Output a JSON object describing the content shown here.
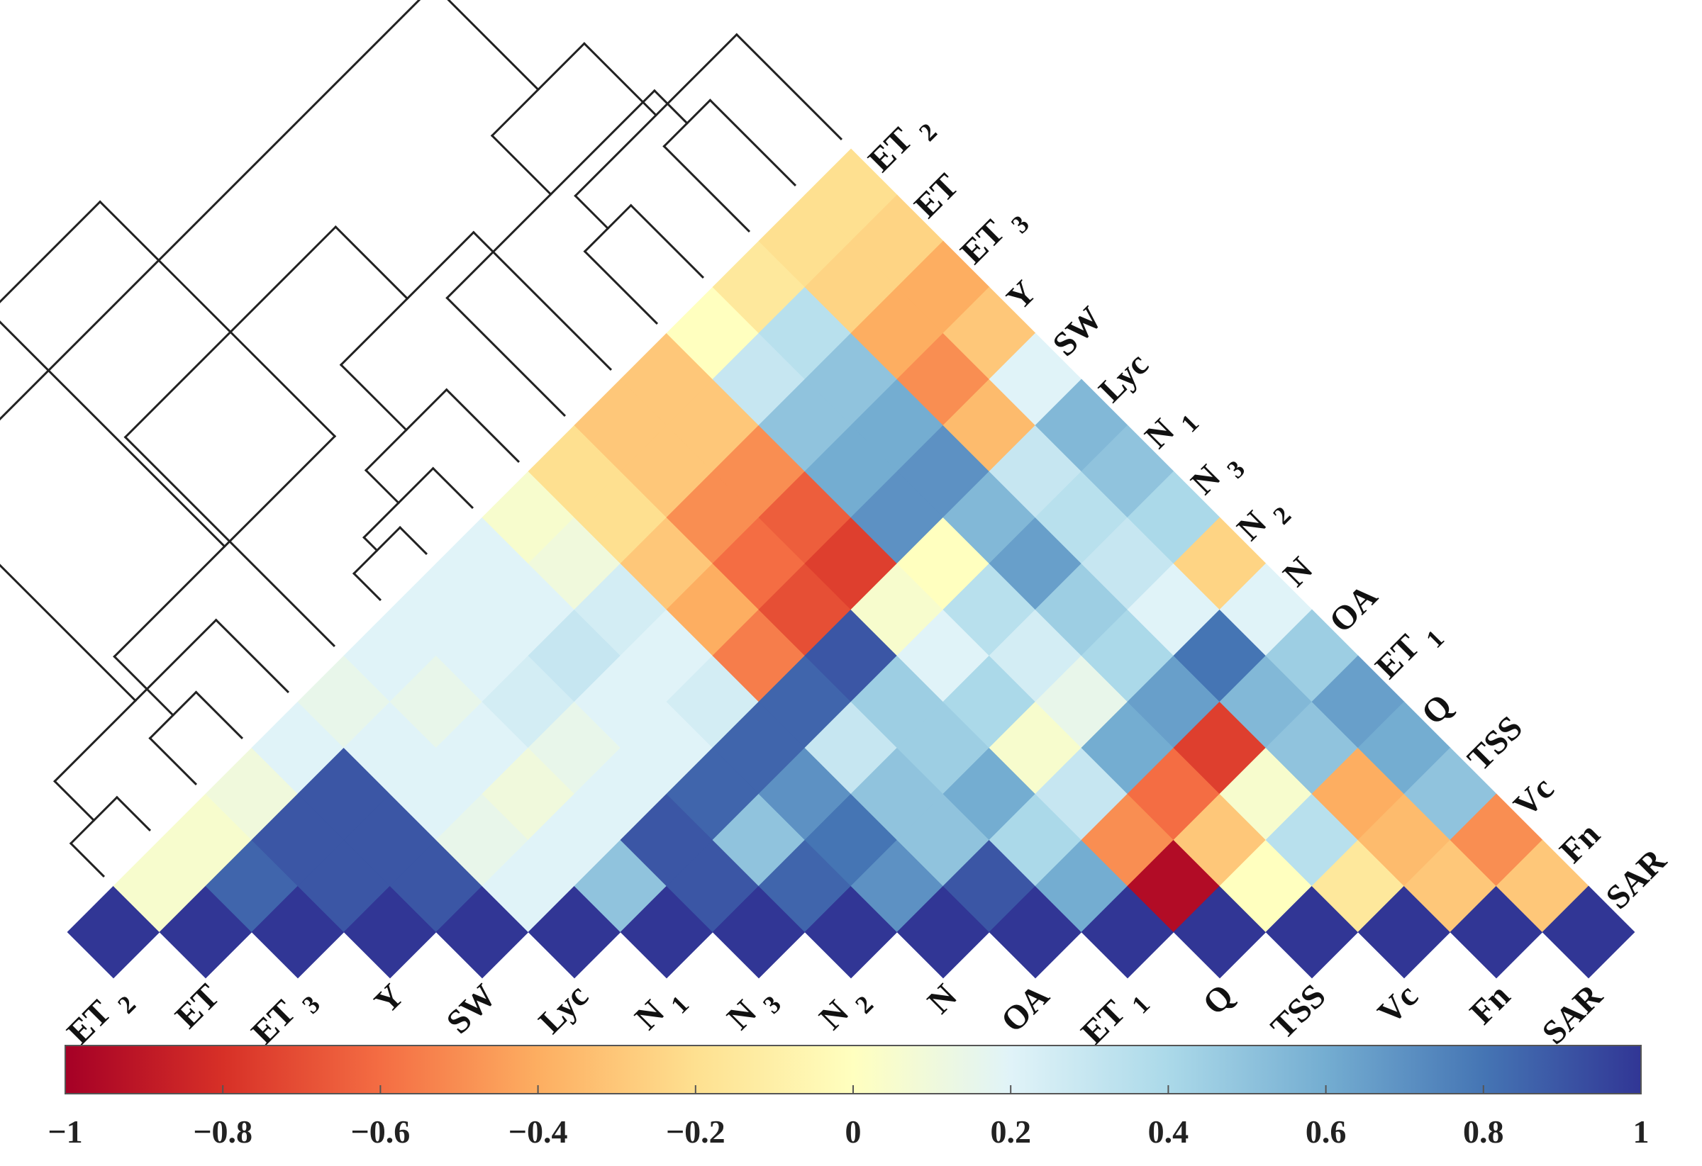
{
  "chart_data": {
    "type": "heatmap",
    "subtype": "lower-triangular correlation matrix with hierarchical clustering dendrogram",
    "title": "",
    "variables": [
      {
        "name": "ET",
        "sub": "2"
      },
      {
        "name": "ET",
        "sub": ""
      },
      {
        "name": "ET",
        "sub": "3"
      },
      {
        "name": "Y",
        "sub": ""
      },
      {
        "name": "SW",
        "sub": ""
      },
      {
        "name": "Lyc",
        "sub": ""
      },
      {
        "name": "N",
        "sub": "1"
      },
      {
        "name": "N",
        "sub": "3"
      },
      {
        "name": "N",
        "sub": "2"
      },
      {
        "name": "N",
        "sub": ""
      },
      {
        "name": "OA",
        "sub": ""
      },
      {
        "name": "ET",
        "sub": "1"
      },
      {
        "name": "Q",
        "sub": ""
      },
      {
        "name": "TSS",
        "sub": ""
      },
      {
        "name": "Vc",
        "sub": ""
      },
      {
        "name": "Fn",
        "sub": ""
      },
      {
        "name": "SAR",
        "sub": ""
      }
    ],
    "correlation_matrix_lower": [
      [
        1
      ],
      [
        0.05,
        1
      ],
      [
        0.05,
        0.85,
        1
      ],
      [
        0.1,
        0.9,
        0.9,
        1
      ],
      [
        0.2,
        0.9,
        0.9,
        0.9,
        1
      ],
      [
        0.15,
        0.2,
        0.2,
        0.15,
        0.2,
        1
      ],
      [
        0.2,
        0.15,
        0.2,
        0.1,
        0.2,
        0.5,
        1
      ],
      [
        0.2,
        0.2,
        0.25,
        0.15,
        0.2,
        0.9,
        0.9,
        1
      ],
      [
        0.2,
        0.2,
        0.3,
        0.2,
        0.2,
        0.85,
        0.5,
        0.85,
        1
      ],
      [
        0.05,
        0.1,
        0.25,
        0.2,
        0.25,
        0.85,
        0.7,
        0.8,
        0.7,
        1
      ],
      [
        -0.2,
        -0.2,
        -0.3,
        -0.4,
        -0.55,
        0.85,
        0.3,
        0.5,
        0.5,
        0.9,
        1
      ],
      [
        -0.3,
        -0.3,
        -0.5,
        -0.6,
        -0.7,
        0.9,
        0.45,
        0.45,
        0.6,
        0.4,
        0.6,
        1
      ],
      [
        -0.3,
        -0.3,
        -0.5,
        -0.65,
        -0.75,
        0.05,
        0.2,
        0.4,
        0.05,
        0.3,
        -0.5,
        -0.95,
        1
      ],
      [
        0.0,
        0.3,
        0.5,
        0.6,
        0.7,
        0.0,
        0.35,
        0.25,
        0.15,
        0.6,
        -0.6,
        -0.3,
        0.0,
        1
      ],
      [
        -0.15,
        0.35,
        0.5,
        0.6,
        0.7,
        0.55,
        0.65,
        0.45,
        0.4,
        0.65,
        -0.75,
        0.05,
        0.35,
        -0.15,
        1
      ],
      [
        -0.2,
        -0.25,
        -0.4,
        -0.5,
        -0.35,
        0.3,
        0.35,
        0.3,
        0.2,
        0.8,
        0.55,
        0.5,
        -0.4,
        -0.35,
        -0.3,
        1
      ],
      [
        -0.2,
        -0.25,
        -0.4,
        -0.3,
        0.2,
        0.55,
        0.5,
        0.4,
        -0.25,
        0.2,
        0.45,
        0.65,
        0.6,
        0.5,
        -0.5,
        -0.3,
        1
      ]
    ],
    "colorbar": {
      "min": -1,
      "max": 1,
      "ticks": [
        -1,
        -0.8,
        -0.6,
        -0.4,
        -0.2,
        0,
        0.2,
        0.4,
        0.6,
        0.8,
        1
      ],
      "tick_labels": [
        "−1",
        "−0.8",
        "−0.6",
        "−0.4",
        "−0.2",
        "0",
        "0.2",
        "0.4",
        "0.6",
        "0.8",
        "1"
      ],
      "colormap": [
        "#a50026",
        "#d73027",
        "#f46d43",
        "#fdae61",
        "#fee090",
        "#ffffbf",
        "#e0f3f8",
        "#abd9e9",
        "#74add1",
        "#4575b4",
        "#313695"
      ]
    },
    "dendrogram": {
      "position": "top-left",
      "merges": [
        [
          6,
          7,
          0.4
        ],
        [
          17,
          8,
          0.6
        ],
        [
          18,
          9,
          1.1
        ],
        [
          12,
          13,
          1.1
        ],
        [
          14,
          15,
          1.3
        ],
        [
          20,
          16,
          1.6
        ],
        [
          21,
          10,
          1.8
        ],
        [
          19,
          11,
          2.1
        ],
        [
          23,
          22,
          2.7
        ],
        [
          24,
          5,
          3.2
        ],
        [
          0,
          1,
          0.5
        ],
        [
          2,
          3,
          0.7
        ],
        [
          27,
          4,
          1.1
        ],
        [
          26,
          28,
          1.6
        ],
        [
          29,
          25,
          4.3
        ],
        [
          30,
          26,
          5.2
        ]
      ]
    }
  }
}
